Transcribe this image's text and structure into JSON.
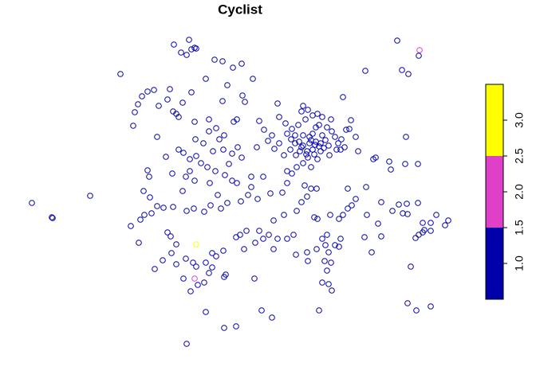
{
  "chart_data": {
    "type": "scatter",
    "title": "Cyclist",
    "points": [
      [
        40,
        225,
        1
      ],
      [
        65,
        207,
        1
      ],
      [
        66,
        206,
        1
      ],
      [
        113,
        234,
        1
      ],
      [
        151,
        387,
        1
      ],
      [
        234,
        48,
        1
      ],
      [
        498,
        429,
        1
      ],
      [
        526,
        417,
        2
      ],
      [
        525,
        410,
        1
      ],
      [
        540,
        95,
        1
      ],
      [
        522,
        90,
        1
      ],
      [
        511,
        99,
        1
      ],
      [
        258,
        88,
        1
      ],
      [
        281,
        68,
        1
      ],
      [
        296,
        70,
        1
      ],
      [
        328,
        90,
        1
      ],
      [
        341,
        81,
        1
      ],
      [
        400,
        90,
        1
      ],
      [
        218,
        424,
        1
      ],
      [
        237,
        430,
        1
      ],
      [
        244,
        420,
        1
      ],
      [
        227,
        414,
        1
      ],
      [
        234,
        411,
        1
      ],
      [
        240,
        418,
        1
      ],
      [
        246,
        419,
        1
      ],
      [
        269,
        405,
        1
      ],
      [
        279,
        403,
        1
      ],
      [
        292,
        395,
        1
      ],
      [
        303,
        400,
        1
      ],
      [
        258,
        381,
        1
      ],
      [
        285,
        373,
        1
      ],
      [
        317,
        381,
        1
      ],
      [
        458,
        391,
        1
      ],
      [
        504,
        392,
        1
      ],
      [
        512,
        387,
        1
      ],
      [
        430,
        358,
        1
      ],
      [
        167,
        322,
        1
      ],
      [
        169,
        339,
        1
      ],
      [
        173,
        349,
        1
      ],
      [
        178,
        359,
        1
      ],
      [
        185,
        365,
        1
      ],
      [
        193,
        367,
        1
      ],
      [
        213,
        368,
        1
      ],
      [
        199,
        347,
        1
      ],
      [
        217,
        340,
        1
      ],
      [
        221,
        337,
        1
      ],
      [
        224,
        333,
        1
      ],
      [
        210,
        355,
        1
      ],
      [
        229,
        351,
        1
      ],
      [
        240,
        364,
        1
      ],
      [
        244,
        327,
        1
      ],
      [
        262,
        330,
        1
      ],
      [
        279,
        353,
        1
      ],
      [
        304,
        360,
        1
      ],
      [
        307,
        352,
        1
      ],
      [
        293,
        327,
        1
      ],
      [
        297,
        330,
        1
      ],
      [
        325,
        328,
        1
      ],
      [
        322,
        295,
        1
      ],
      [
        197,
        308,
        1
      ],
      [
        245,
        305,
        1
      ],
      [
        255,
        300,
        1
      ],
      [
        262,
        315,
        1
      ],
      [
        271,
        319,
        1
      ],
      [
        275,
        305,
        1
      ],
      [
        281,
        310,
        1
      ],
      [
        224,
        292,
        1
      ],
      [
        230,
        288,
        1
      ],
      [
        238,
        280,
        1
      ],
      [
        246,
        284,
        1
      ],
      [
        252,
        275,
        1
      ],
      [
        267,
        290,
        1
      ],
      [
        260,
        270,
        1
      ],
      [
        270,
        265,
        1
      ],
      [
        280,
        292,
        1
      ],
      [
        291,
        287,
        1
      ],
      [
        298,
        295,
        1
      ],
      [
        303,
        282,
        1
      ],
      [
        287,
        274,
        1
      ],
      [
        282,
        260,
        1
      ],
      [
        291,
        253,
        1
      ],
      [
        238,
        265,
        1
      ],
      [
        233,
        258,
        1
      ],
      [
        216,
        262,
        1
      ],
      [
        208,
        283,
        1
      ],
      [
        185,
        266,
        1
      ],
      [
        187,
        258,
        1
      ],
      [
        229,
        240,
        1
      ],
      [
        244,
        253,
        1
      ],
      [
        263,
        250,
        1
      ],
      [
        273,
        235,
        1
      ],
      [
        297,
        250,
        1
      ],
      [
        315,
        245,
        1
      ],
      [
        311,
        235,
        1
      ],
      [
        302,
        227,
        1
      ],
      [
        285,
        225,
        1
      ],
      [
        277,
        218,
        1
      ],
      [
        264,
        222,
        1
      ],
      [
        256,
        214,
        1
      ],
      [
        243,
        218,
        1
      ],
      [
        234,
        215,
        1
      ],
      [
        217,
        220,
        1
      ],
      [
        205,
        219,
        1
      ],
      [
        197,
        221,
        1
      ],
      [
        188,
        232,
        1
      ],
      [
        180,
        240,
        1
      ],
      [
        190,
        212,
        1
      ],
      [
        176,
        204,
        1
      ],
      [
        181,
        210,
        1
      ],
      [
        164,
        196,
        1
      ],
      [
        174,
        175,
        1
      ],
      [
        214,
        183,
        1
      ],
      [
        210,
        188,
        1
      ],
      [
        221,
        173,
        1
      ],
      [
        215,
        162,
        1
      ],
      [
        204,
        153,
        1
      ],
      [
        194,
        142,
        1
      ],
      [
        221,
        148,
        1
      ],
      [
        233,
        155,
        1
      ],
      [
        242,
        150,
        1
      ],
      [
        258,
        150,
        1
      ],
      [
        266,
        162,
        1
      ],
      [
        271,
        158,
        1
      ],
      [
        280,
        165,
        1
      ],
      [
        283,
        135,
        1
      ],
      [
        262,
        137,
        1
      ],
      [
        256,
        125,
        1
      ],
      [
        248,
        122,
        1
      ],
      [
        244,
        130,
        2
      ],
      [
        239,
        114,
        1
      ],
      [
        230,
        130,
        1
      ],
      [
        246,
        145,
        1
      ],
      [
        266,
        144,
        1
      ],
      [
        281,
        132,
        1
      ],
      [
        246,
        173,
        3
      ],
      [
        301,
        185,
        1
      ],
      [
        296,
        182,
        1
      ],
      [
        309,
        190,
        1
      ],
      [
        306,
        167,
        1
      ],
      [
        320,
        175,
        1
      ],
      [
        319,
        130,
        1
      ],
      [
        325,
        190,
        1
      ],
      [
        330,
        180,
        1
      ],
      [
        343,
        203,
        1
      ],
      [
        348,
        180,
        1
      ],
      [
        337,
        185,
        1
      ],
      [
        343,
        167,
        1
      ],
      [
        368,
        185,
        1
      ],
      [
        360,
        180,
        1
      ],
      [
        371,
        160,
        1
      ],
      [
        385,
        163,
        1
      ],
      [
        386,
        152,
        1
      ],
      [
        397,
        167,
        1
      ],
      [
        404,
        180,
        1
      ],
      [
        410,
        185,
        1
      ],
      [
        408,
        172,
        1
      ],
      [
        412,
        163,
        1
      ],
      [
        420,
        172,
        1
      ],
      [
        425,
        170,
        1
      ],
      [
        427,
        180,
        1
      ],
      [
        415,
        150,
        1
      ],
      [
        407,
        152,
        1
      ],
      [
        410,
        140,
        1
      ],
      [
        412,
        123,
        1
      ],
      [
        416,
        115,
        1
      ],
      [
        404,
        125,
        1
      ],
      [
        457,
        182,
        1
      ],
      [
        466,
        163,
        1
      ],
      [
        478,
        183,
        1
      ],
      [
        460,
        210,
        1
      ],
      [
        446,
        230,
        1
      ],
      [
        441,
        222,
        1
      ],
      [
        425,
        205,
        1
      ],
      [
        414,
        210,
        1
      ],
      [
        430,
        210,
        1
      ],
      [
        436,
        218,
        1
      ],
      [
        398,
        205,
        1
      ],
      [
        378,
        226,
        1
      ],
      [
        372,
        215,
        1
      ],
      [
        385,
        233,
        1
      ],
      [
        394,
        207,
        1
      ],
      [
        354,
        238,
        1
      ],
      [
        356,
        210,
        1
      ],
      [
        339,
        237,
        1
      ],
      [
        330,
        258,
        1
      ],
      [
        315,
        258,
        1
      ],
      [
        323,
        230,
        1
      ],
      [
        366,
        262,
        1
      ],
      [
        382,
        247,
        1
      ],
      [
        390,
        243,
        1
      ],
      [
        397,
        243,
        1
      ],
      [
        436,
        243,
        1
      ],
      [
        459,
        245,
        1
      ],
      [
        478,
        226,
        1
      ],
      [
        492,
        215,
        1
      ],
      [
        500,
        223,
        1
      ],
      [
        505,
        212,
        1
      ],
      [
        511,
        211,
        1
      ],
      [
        510,
        224,
        1
      ],
      [
        524,
        225,
        1
      ],
      [
        530,
        200,
        1
      ],
      [
        525,
        185,
        1
      ],
      [
        521,
        181,
        1
      ],
      [
        530,
        188,
        1
      ],
      [
        532,
        191,
        1
      ],
      [
        540,
        190,
        1
      ],
      [
        547,
        210,
        1
      ],
      [
        540,
        200,
        1
      ],
      [
        562,
        203,
        1
      ],
      [
        558,
        197,
        1
      ],
      [
        515,
        145,
        1
      ],
      [
        474,
        199,
        1
      ],
      [
        471,
        282,
        1
      ],
      [
        468,
        280,
        1
      ],
      [
        488,
        277,
        1
      ],
      [
        490,
        267,
        1
      ],
      [
        509,
        308,
        1
      ],
      [
        524,
        274,
        1
      ],
      [
        508,
        274,
        1
      ],
      [
        432,
        295,
        1
      ],
      [
        434,
        317,
        1
      ],
      [
        440,
        329,
        1
      ],
      [
        446,
        308,
        1
      ],
      [
        360,
        250,
        1
      ],
      [
        360,
        265,
        1
      ],
      [
        348,
        350,
        1
      ],
      [
        350,
        333,
        1
      ],
      [
        358,
        325,
        1
      ],
      [
        366,
        318,
        1
      ],
      [
        370,
        310,
        1
      ],
      [
        375,
        302,
        1
      ],
      [
        380,
        297,
        1
      ],
      [
        385,
        290,
        1
      ],
      [
        390,
        304,
        1
      ],
      [
        392,
        312,
        1
      ],
      [
        396,
        320,
        1
      ],
      [
        400,
        323,
        1
      ],
      [
        404,
        310,
        1
      ],
      [
        408,
        304,
        1
      ],
      [
        412,
        297,
        1
      ],
      [
        416,
        315,
        1
      ],
      [
        420,
        308,
        1
      ],
      [
        424,
        300,
        1
      ],
      [
        427,
        292,
        1
      ],
      [
        395,
        298,
        1
      ],
      [
        386,
        282,
        1
      ],
      [
        380,
        275,
        1
      ],
      [
        372,
        270,
        1
      ],
      [
        364,
        292,
        1
      ],
      [
        356,
        285,
        1
      ],
      [
        350,
        300,
        1
      ],
      [
        344,
        293,
        1
      ],
      [
        336,
        303,
        1
      ],
      [
        331,
        317,
        1
      ],
      [
        341,
        310,
        1
      ],
      [
        378,
        340,
        1
      ],
      [
        380,
        347,
        1
      ],
      [
        386,
        342,
        1
      ],
      [
        383,
        330,
        1
      ],
      [
        392,
        335,
        1
      ],
      [
        398,
        337,
        1
      ],
      [
        410,
        320,
        1
      ],
      [
        402,
        290,
        1
      ],
      [
        398,
        280,
        1
      ],
      [
        390,
        270,
        1
      ],
      [
        371,
        285,
        1
      ],
      [
        365,
        305,
        1
      ],
      [
        360,
        312,
        1
      ],
      [
        374,
        323,
        1
      ],
      [
        388,
        308,
        1
      ],
      [
        396,
        302,
        1
      ],
      [
        406,
        294,
        1
      ],
      [
        413,
        285,
        1
      ],
      [
        422,
        292,
        1
      ],
      [
        428,
        305,
        1
      ],
      [
        438,
        318,
        1
      ],
      [
        449,
        290,
        1
      ],
      [
        404,
        333,
        1
      ],
      [
        415,
        330,
        1
      ],
      [
        376,
        290,
        1
      ],
      [
        384,
        286,
        1
      ],
      [
        392,
        292,
        1
      ],
      [
        400,
        296,
        1
      ],
      [
        388,
        300,
        1
      ],
      [
        380,
        310,
        1
      ],
      [
        370,
        300,
        1
      ],
      [
        394,
        286,
        1
      ],
      [
        402,
        300,
        1
      ],
      [
        378,
        295,
        1
      ]
    ],
    "colorbar": {
      "breaks": [
        0.5,
        1.5,
        2.5,
        3.5
      ],
      "colors": [
        "#0000AA",
        "#E040C8",
        "#FFFF00"
      ],
      "ticks": [
        {
          "value": 1,
          "label": "1.0"
        },
        {
          "value": 1.5,
          "label": "1.5"
        },
        {
          "value": 2,
          "label": "2.0"
        },
        {
          "value": 2.5,
          "label": "2.5"
        },
        {
          "value": 3,
          "label": "3.0"
        }
      ]
    }
  }
}
